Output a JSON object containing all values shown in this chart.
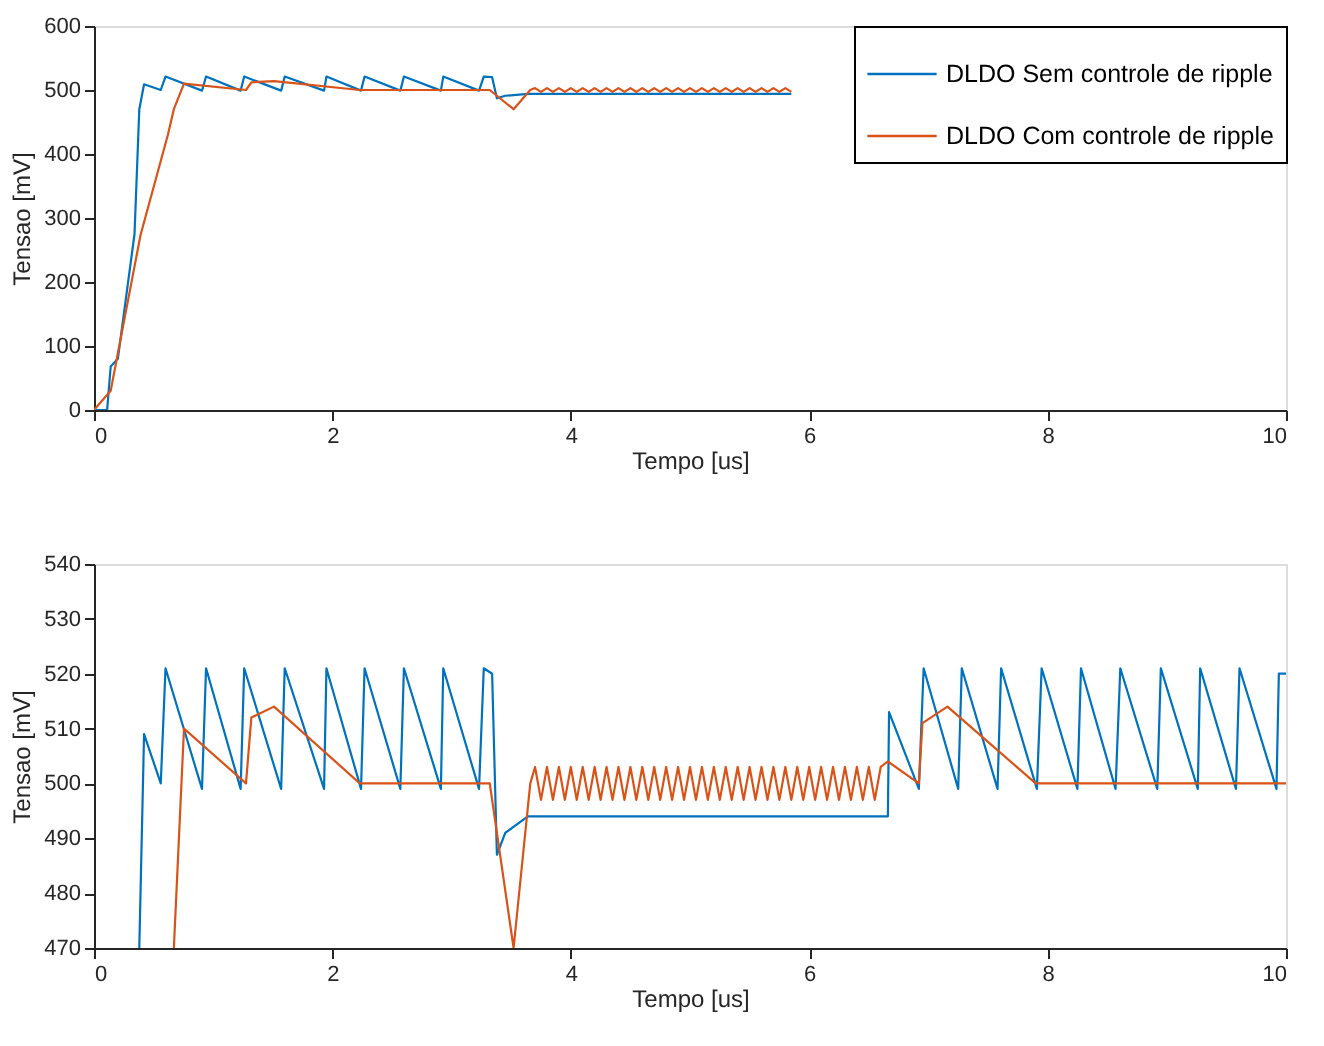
{
  "chart_data": [
    {
      "type": "line",
      "xlabel": "Tempo [us]",
      "ylabel": "Tensao [mV]",
      "xlim": [
        0,
        10
      ],
      "ylim": [
        0,
        600
      ],
      "xticks": [
        0,
        2,
        4,
        6,
        8,
        10
      ],
      "yticks": [
        0,
        100,
        200,
        300,
        400,
        500,
        600
      ],
      "grid": false,
      "legend": "top right",
      "line_style": "solid",
      "marker": "none",
      "series": [
        {
          "name": "DLDO Sem controle de ripple",
          "color": "#0072bd",
          "x": [
            0,
            0.11,
            0.14,
            0.2,
            0.34,
            0.38,
            0.42,
            0.56,
            0.6,
            0.906,
            0.94,
            1.23,
            1.26,
            1.57,
            1.6,
            1.93,
            1.95,
            2.24,
            2.27,
            2.57,
            2.6,
            2.91,
            2.93,
            3.23,
            3.27,
            3.34,
            3.38,
            3.45,
            3.64,
            5.85
          ],
          "values": [
            0,
            0,
            68,
            80,
            275,
            470,
            509,
            500,
            521,
            499,
            521,
            499,
            521,
            499,
            521,
            499,
            521,
            499,
            521,
            499,
            521,
            499,
            521,
            499,
            521,
            520,
            487,
            491,
            494,
            494
          ]
        },
        {
          "name": "DLDO Com controle de ripple",
          "color": "#d95319",
          "x": [
            0,
            0.14,
            0.39,
            0.62,
            0.67,
            0.755,
            1.275,
            1.32,
            1.51,
            2.23,
            3.32,
            3.52,
            3.66,
            3.7,
            3.75,
            3.8,
            3.85,
            3.9,
            3.95,
            4,
            4.05,
            4.1,
            4.15,
            4.2,
            4.25,
            4.3,
            4.35,
            4.4,
            4.45,
            4.5,
            4.55,
            4.6,
            4.65,
            4.7,
            4.75,
            4.8,
            4.85,
            4.9,
            4.95,
            5,
            5.05,
            5.1,
            5.15,
            5.2,
            5.25,
            5.3,
            5.35,
            5.4,
            5.45,
            5.5,
            5.55,
            5.6,
            5.65,
            5.7,
            5.75,
            5.8,
            5.85
          ],
          "values": [
            0,
            30,
            273,
            430,
            470,
            510,
            500,
            512,
            514,
            500,
            500,
            470,
            500,
            503,
            497,
            503,
            497,
            503,
            497,
            503,
            497,
            503,
            497,
            503,
            497,
            503,
            497,
            503,
            497,
            503,
            497,
            503,
            497,
            503,
            497,
            503,
            497,
            503,
            497,
            503,
            497,
            503,
            497,
            503,
            497,
            503,
            497,
            503,
            497,
            503,
            497,
            503,
            497,
            503,
            497,
            503,
            497
          ]
        }
      ]
    },
    {
      "type": "line",
      "xlabel": "Tempo [us]",
      "ylabel": "Tensao [mV]",
      "xlim": [
        0,
        10
      ],
      "ylim": [
        470,
        540
      ],
      "xticks": [
        0,
        2,
        4,
        6,
        8,
        10
      ],
      "yticks": [
        470,
        480,
        490,
        500,
        510,
        520,
        530,
        540
      ],
      "grid": false,
      "line_style": "solid",
      "marker": "none",
      "series": [
        {
          "color": "#0072bd",
          "x": [
            0.38,
            0.42,
            0.56,
            0.6,
            0.906,
            0.94,
            1.23,
            1.26,
            1.57,
            1.6,
            1.93,
            1.95,
            2.24,
            2.27,
            2.57,
            2.6,
            2.91,
            2.93,
            3.23,
            3.27,
            3.34,
            3.38,
            3.45,
            3.64,
            6.66,
            6.67,
            6.92,
            6.96,
            7.25,
            7.28,
            7.58,
            7.61,
            7.91,
            7.95,
            8.25,
            8.28,
            8.57,
            8.61,
            8.92,
            8.95,
            9.26,
            9.28,
            9.58,
            9.61,
            9.92,
            9.94,
            10
          ],
          "values": [
            470,
            509,
            500,
            521,
            499,
            521,
            499,
            521,
            499,
            521,
            499,
            521,
            499,
            521,
            499,
            521,
            499,
            521,
            499,
            521,
            520,
            487,
            491,
            494,
            494,
            513,
            499,
            521,
            499,
            521,
            499,
            521,
            499,
            521,
            499,
            521,
            499,
            521,
            499,
            521,
            499,
            521,
            499,
            521,
            499,
            520,
            520
          ]
        },
        {
          "color": "#d95319",
          "x": [
            0.67,
            0.755,
            1.275,
            1.32,
            1.51,
            2.23,
            3.32,
            3.52,
            3.66,
            3.7,
            3.75,
            3.8,
            3.85,
            3.9,
            3.95,
            4,
            4.05,
            4.1,
            4.15,
            4.2,
            4.25,
            4.3,
            4.35,
            4.4,
            4.45,
            4.5,
            4.55,
            4.6,
            4.65,
            4.7,
            4.75,
            4.8,
            4.85,
            4.9,
            4.95,
            5,
            5.05,
            5.1,
            5.15,
            5.2,
            5.25,
            5.3,
            5.35,
            5.4,
            5.45,
            5.5,
            5.55,
            5.6,
            5.65,
            5.7,
            5.75,
            5.8,
            5.85,
            5.9,
            5.95,
            6,
            6.05,
            6.1,
            6.15,
            6.2,
            6.25,
            6.3,
            6.35,
            6.4,
            6.45,
            6.5,
            6.55,
            6.6,
            6.66,
            6.92,
            6.95,
            7.16,
            7.9,
            10
          ],
          "values": [
            470,
            510,
            500,
            512,
            514,
            500,
            500,
            470,
            500,
            503,
            497,
            503,
            497,
            503,
            497,
            503,
            497,
            503,
            497,
            503,
            497,
            503,
            497,
            503,
            497,
            503,
            497,
            503,
            497,
            503,
            497,
            503,
            497,
            503,
            497,
            503,
            497,
            503,
            497,
            503,
            497,
            503,
            497,
            503,
            497,
            503,
            497,
            503,
            497,
            503,
            497,
            503,
            497,
            503,
            497,
            503,
            497,
            503,
            497,
            503,
            497,
            503,
            497,
            503,
            497,
            503,
            497,
            503,
            504,
            500,
            511,
            514,
            500,
            500
          ]
        }
      ]
    }
  ]
}
